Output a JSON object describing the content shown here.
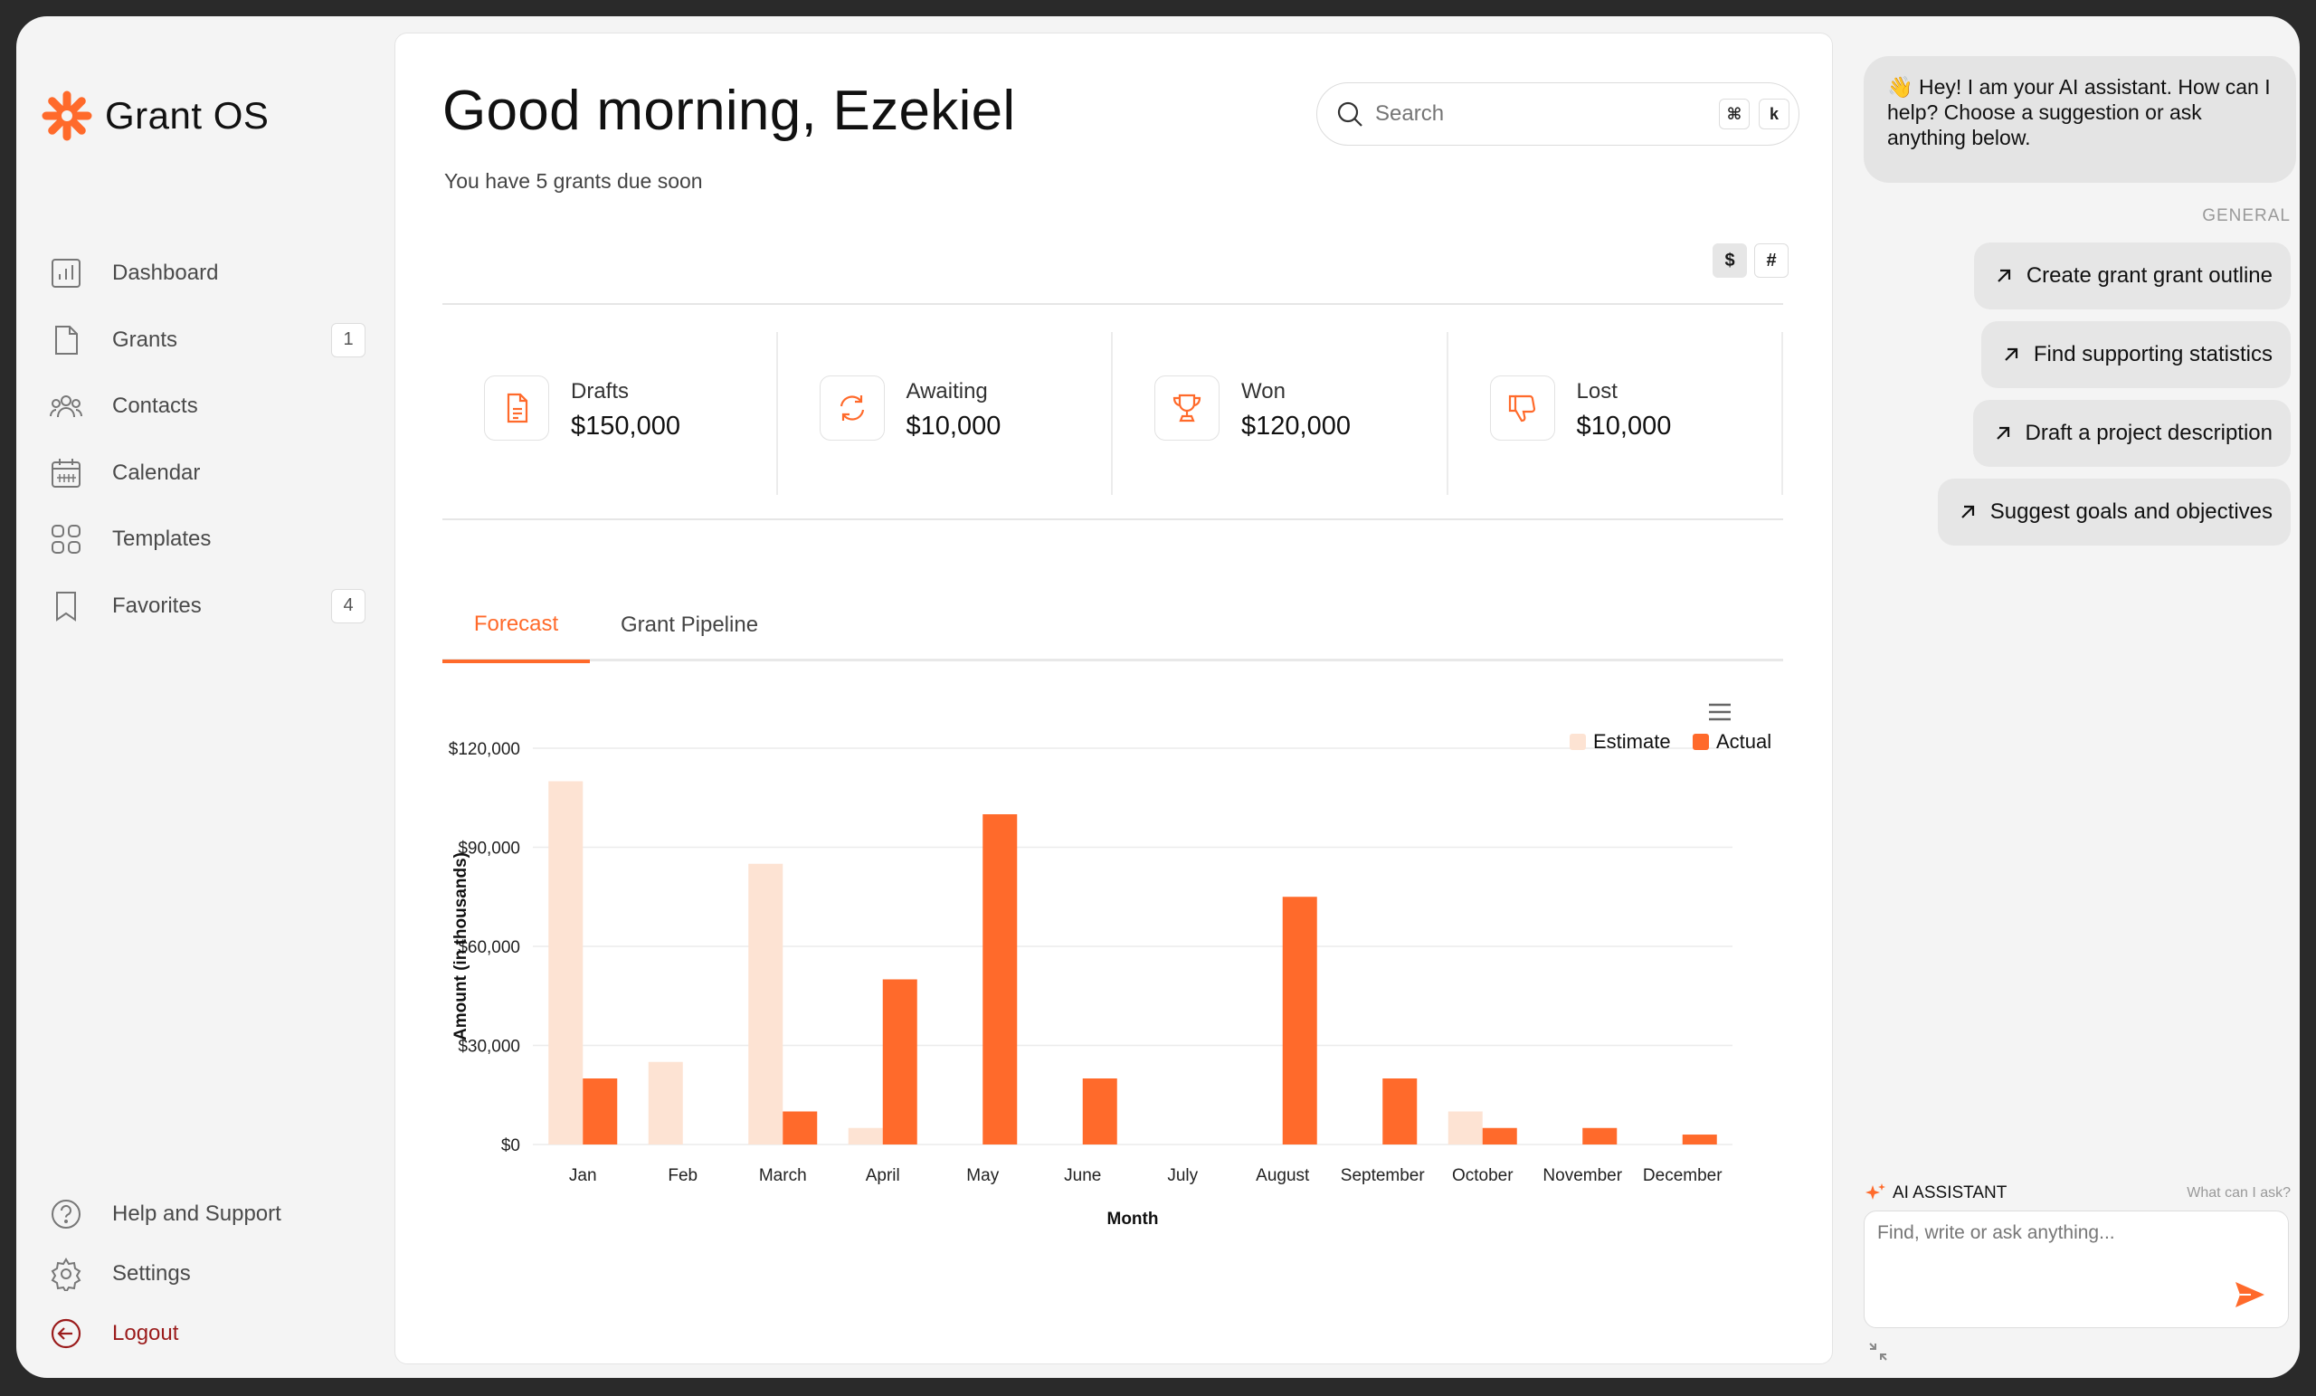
{
  "brand": {
    "name": "Grant OS",
    "icon": "asterisk-logo-icon",
    "accent": "#ff6a2b"
  },
  "nav": [
    {
      "label": "Dashboard",
      "icon": "bar-chart-icon"
    },
    {
      "label": "Grants",
      "icon": "document-icon",
      "badge": "1"
    },
    {
      "label": "Contacts",
      "icon": "people-icon"
    },
    {
      "label": "Calendar",
      "icon": "calendar-icon"
    },
    {
      "label": "Templates",
      "icon": "grid-icon"
    },
    {
      "label": "Favorites",
      "icon": "bookmark-icon",
      "badge": "4"
    }
  ],
  "bottom_nav": [
    {
      "label": "Help and Support",
      "icon": "help-circle-icon"
    },
    {
      "label": "Settings",
      "icon": "gear-icon"
    },
    {
      "label": "Logout",
      "icon": "logout-icon",
      "color": "#9b1c1c"
    }
  ],
  "header": {
    "greeting": "Good morning, Ezekiel",
    "subtitle": "You have 5 grants due soon"
  },
  "search": {
    "placeholder": "Search",
    "shortcut_keys": [
      "⌘",
      "k"
    ]
  },
  "view_toggle": [
    "$",
    "#"
  ],
  "stats": [
    {
      "label": "Drafts",
      "value": "$150,000",
      "icon": "document-icon"
    },
    {
      "label": "Awaiting",
      "value": "$10,000",
      "icon": "refresh-icon"
    },
    {
      "label": "Won",
      "value": "$120,000",
      "icon": "trophy-icon"
    },
    {
      "label": "Lost",
      "value": "$10,000",
      "icon": "thumbs-down-icon"
    }
  ],
  "tabs": [
    {
      "label": "Forecast",
      "active": true
    },
    {
      "label": "Grant Pipeline",
      "active": false
    }
  ],
  "chart_data": {
    "type": "bar",
    "categories": [
      "Jan",
      "Feb",
      "March",
      "April",
      "May",
      "June",
      "July",
      "August",
      "September",
      "October",
      "November",
      "December"
    ],
    "series": [
      {
        "name": "Estimate",
        "color": "#fde3d3",
        "values": [
          110000,
          25000,
          85000,
          5000,
          0,
          0,
          0,
          0,
          0,
          10000,
          0,
          0
        ]
      },
      {
        "name": "Actual",
        "color": "#ff6a2b",
        "values": [
          20000,
          0,
          10000,
          50000,
          100000,
          20000,
          0,
          75000,
          20000,
          5000,
          5000,
          3000
        ]
      }
    ],
    "xlabel": "Month",
    "ylabel": "Amount (in thousands)",
    "ylim": [
      0,
      120000
    ],
    "yticks": [
      "$0",
      "$30,000",
      "$60,000",
      "$90,000",
      "$120,000"
    ],
    "grid": true,
    "legend": "top-right"
  },
  "assistant": {
    "greeting": "👋 Hey! I am your AI assistant. How can I help? Choose a suggestion or ask anything below.",
    "section": "GENERAL",
    "suggestions": [
      "Create grant grant outline",
      "Find supporting statistics",
      "Draft a project description",
      "Suggest goals and objectives"
    ],
    "label": "AI ASSISTANT",
    "help": "What can I ask?",
    "input_placeholder": "Find, write or ask anything..."
  }
}
